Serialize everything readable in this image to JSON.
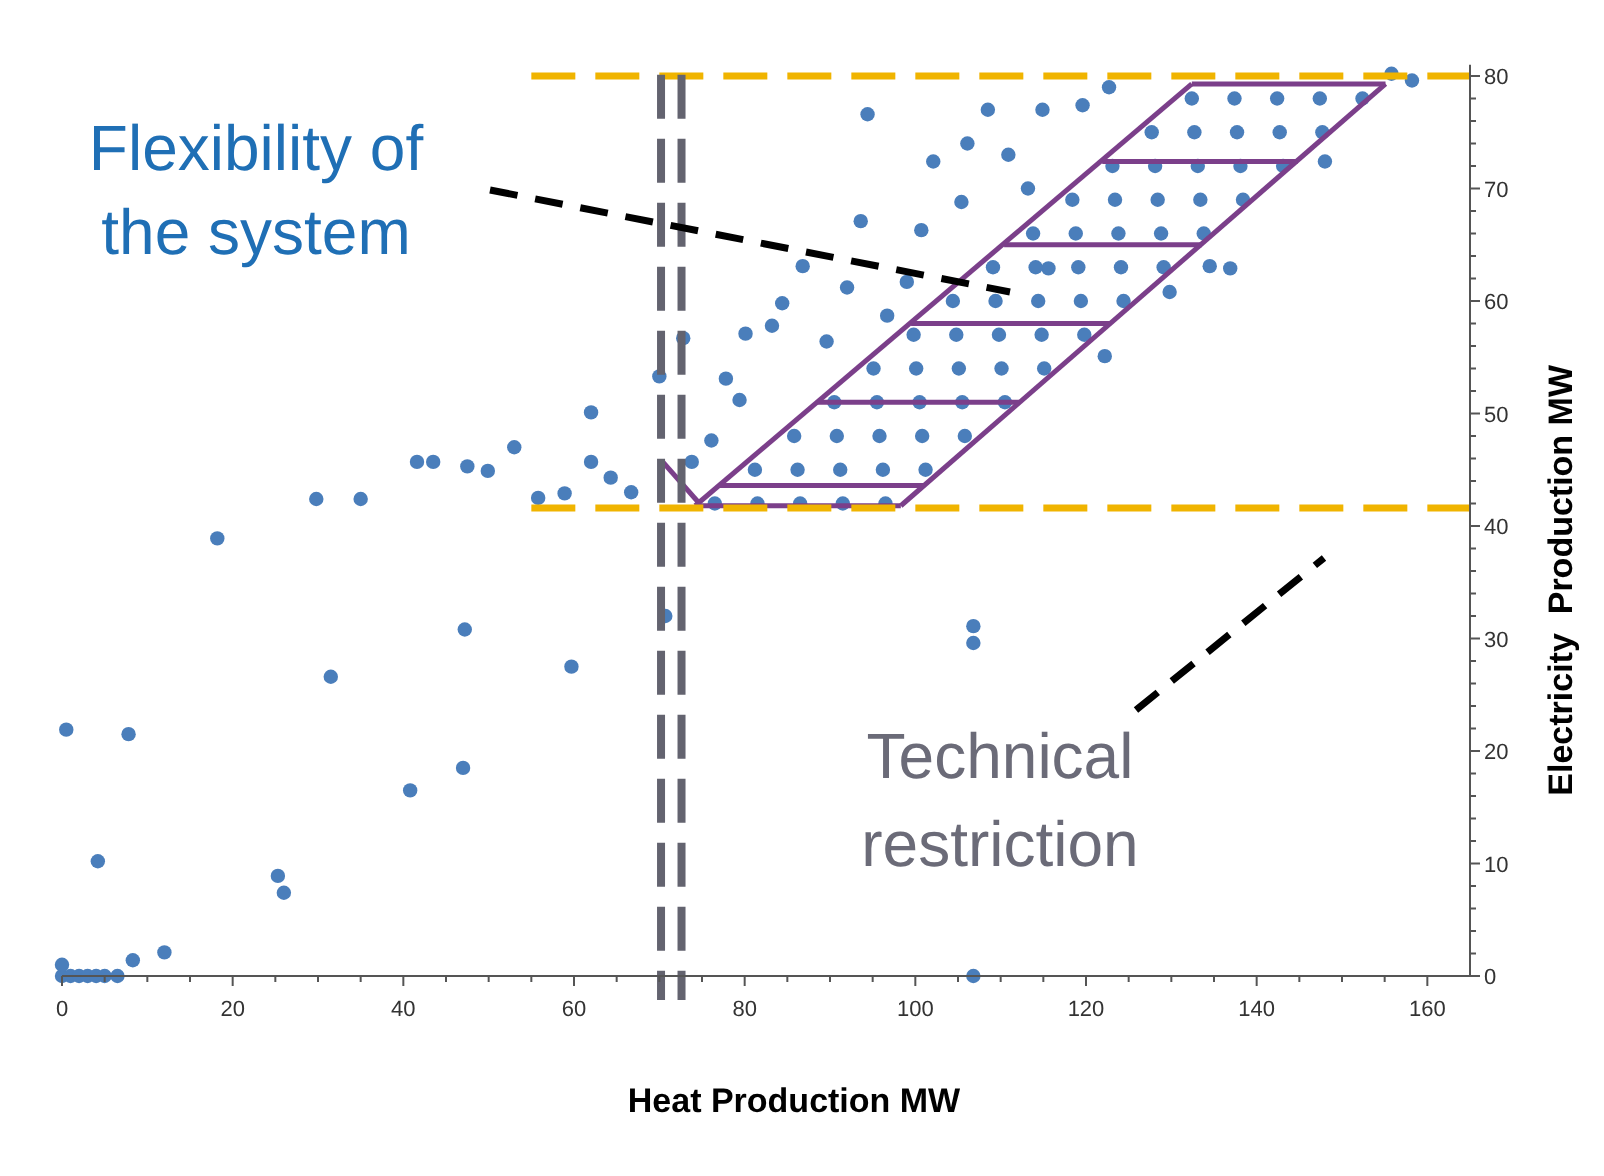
{
  "chart_data": {
    "type": "scatter",
    "xlabel": "Heat Production MW",
    "ylabel": "Electricity  Production MW",
    "xlim": [
      0,
      165
    ],
    "ylim": [
      0,
      81
    ],
    "xticks": [
      0,
      {
        "value": 5,
        "label": null
      },
      {
        "value": 10,
        "label": null
      },
      {
        "value": 15,
        "label": null
      },
      20,
      {
        "value": 25,
        "label": null
      },
      {
        "value": 30,
        "label": null
      },
      {
        "value": 35,
        "label": null
      },
      40,
      {
        "value": 45,
        "label": null
      },
      {
        "value": 50,
        "label": null
      },
      {
        "value": 55,
        "label": null
      },
      60,
      {
        "value": 65,
        "label": null
      },
      {
        "value": 70,
        "label": null
      },
      {
        "value": 75,
        "label": null
      },
      80,
      {
        "value": 85,
        "label": null
      },
      {
        "value": 90,
        "label": null
      },
      {
        "value": 95,
        "label": null
      },
      100,
      {
        "value": 105,
        "label": null
      },
      {
        "value": 110,
        "label": null
      },
      {
        "value": 115,
        "label": null
      },
      120,
      {
        "value": 125,
        "label": null
      },
      {
        "value": 130,
        "label": null
      },
      {
        "value": 135,
        "label": null
      },
      140,
      {
        "value": 145,
        "label": null
      },
      {
        "value": 150,
        "label": null
      },
      {
        "value": 155,
        "label": null
      },
      160
    ],
    "yticks": [
      0,
      {
        "value": 2,
        "label": null
      },
      {
        "value": 4,
        "label": null
      },
      {
        "value": 6,
        "label": null
      },
      {
        "value": 8,
        "label": null
      },
      10,
      {
        "value": 12,
        "label": null
      },
      {
        "value": 14,
        "label": null
      },
      {
        "value": 16,
        "label": null
      },
      {
        "value": 18,
        "label": null
      },
      20,
      {
        "value": 22,
        "label": null
      },
      {
        "value": 24,
        "label": null
      },
      {
        "value": 26,
        "label": null
      },
      {
        "value": 28,
        "label": null
      },
      30,
      {
        "value": 32,
        "label": null
      },
      {
        "value": 34,
        "label": null
      },
      {
        "value": 36,
        "label": null
      },
      {
        "value": 38,
        "label": null
      },
      40,
      {
        "value": 42,
        "label": null
      },
      {
        "value": 44,
        "label": null
      },
      {
        "value": 46,
        "label": null
      },
      {
        "value": 48,
        "label": null
      },
      50,
      {
        "value": 52,
        "label": null
      },
      {
        "value": 54,
        "label": null
      },
      {
        "value": 56,
        "label": null
      },
      {
        "value": 58,
        "label": null
      },
      60,
      {
        "value": 62,
        "label": null
      },
      {
        "value": 64,
        "label": null
      },
      {
        "value": 66,
        "label": null
      },
      {
        "value": 68,
        "label": null
      },
      70,
      {
        "value": 72,
        "label": null
      },
      {
        "value": 74,
        "label": null
      },
      {
        "value": 76,
        "label": null
      },
      {
        "value": 78,
        "label": null
      },
      80
    ],
    "grid": false,
    "annotations": [
      "Flexibility of the system",
      "Technical restriction"
    ],
    "ref_lines": [
      {
        "axis": "y",
        "value": 80,
        "color": "#f0b400",
        "line_style": "dashed"
      },
      {
        "axis": "y",
        "value": 41.6,
        "color": "#f0b400",
        "line_style": "dashed"
      },
      {
        "axis": "x",
        "value": 70.2,
        "color": "#63636f",
        "line_style": "dashed"
      },
      {
        "axis": "x",
        "value": 72.6,
        "color": "#63636f",
        "line_style": "dashed"
      }
    ],
    "series": [
      {
        "marker": "circle",
        "color": "#4a7ebb",
        "x": [
          0,
          1,
          2,
          3,
          4,
          5,
          6.5,
          0,
          0.5,
          7.8,
          4.2,
          8.3,
          12,
          25.3,
          26,
          31.5,
          40.8,
          47,
          47.2,
          59.7,
          70.7,
          106.8,
          106.8,
          106.8,
          62,
          41.6,
          43.5,
          47.5,
          49.9,
          53,
          29.8,
          35,
          18.2,
          55.8,
          58.9,
          62,
          64.3,
          66.7,
          70,
          72.8,
          77.8,
          79.4,
          80.1,
          83.2,
          84.4,
          86.8,
          76.1,
          73.8,
          94.4,
          93.6,
          100.7,
          106.1,
          108.5,
          114.9,
          122.7,
          119.6,
          102.1,
          110.9,
          105.4,
          92,
          96.7,
          89.6,
          122.2,
          134.5,
          136.9,
          129.8,
          148,
          158.2,
          155.8,
          115.6,
          113.2,
          99,
          76.5,
          81.5,
          86.5,
          91.5,
          96.5,
          81.2,
          86.2,
          91.2,
          96.2,
          101.2,
          85.8,
          90.8,
          95.8,
          100.8,
          105.8,
          90.5,
          95.5,
          100.5,
          105.5,
          110.5,
          95.1,
          100.1,
          105.1,
          110.1,
          115.1,
          99.8,
          104.8,
          109.8,
          114.8,
          119.8,
          104.4,
          109.4,
          114.4,
          119.4,
          124.4,
          109.1,
          114.1,
          119.1,
          124.1,
          129.1,
          113.8,
          118.8,
          123.8,
          128.8,
          133.8,
          118.4,
          123.4,
          128.4,
          133.4,
          138.4,
          123.1,
          128.1,
          133.1,
          138.1,
          143.1,
          127.7,
          132.7,
          137.7,
          142.7,
          147.7,
          132.4,
          137.4,
          142.4,
          147.4,
          152.4
        ],
        "values": [
          0,
          0,
          0,
          0,
          0,
          0,
          0,
          1,
          21.9,
          21.5,
          10.2,
          1.4,
          2.1,
          8.9,
          7.4,
          26.6,
          16.5,
          18.5,
          30.8,
          27.5,
          32,
          31.1,
          29.6,
          0,
          50.1,
          45.7,
          45.7,
          45.3,
          44.9,
          47,
          42.4,
          42.4,
          38.9,
          42.5,
          42.9,
          45.7,
          44.3,
          43,
          53.3,
          56.7,
          53.1,
          51.2,
          57.1,
          57.8,
          59.8,
          63.1,
          47.6,
          45.7,
          76.6,
          67.1,
          66.3,
          74,
          77,
          77,
          79,
          77.4,
          72.4,
          73,
          68.8,
          61.2,
          58.7,
          56.4,
          55.1,
          63.1,
          62.9,
          60.8,
          72.4,
          79.6,
          80.2,
          62.9,
          70,
          61.7,
          42,
          42,
          42,
          42,
          42,
          45,
          45,
          45,
          45,
          45,
          48,
          48,
          48,
          48,
          48,
          51,
          51,
          51,
          51,
          51,
          54,
          54,
          54,
          54,
          54,
          57,
          57,
          57,
          57,
          57,
          60,
          60,
          60,
          60,
          60,
          63,
          63,
          63,
          63,
          63,
          66,
          66,
          66,
          66,
          66,
          69,
          69,
          69,
          69,
          69,
          72,
          72,
          72,
          72,
          72,
          75,
          75,
          75,
          75,
          75,
          78,
          78,
          78,
          78,
          78
        ]
      },
      {
        "type": "line",
        "marker": "none",
        "color": "#7b3f8a",
        "x": [
          74.2,
          98.3
        ],
        "values": [
          41.8,
          41.8
        ]
      },
      {
        "type": "line",
        "marker": "none",
        "color": "#7b3f8a",
        "x": [
          98.3,
          155.1
        ],
        "values": [
          41.8,
          79.3
        ]
      },
      {
        "type": "line",
        "marker": "none",
        "color": "#7b3f8a",
        "x": [
          132.4,
          155.1
        ],
        "values": [
          79.3,
          79.3
        ]
      },
      {
        "type": "line",
        "marker": "none",
        "color": "#7b3f8a",
        "x": [
          74.2,
          132.4
        ],
        "values": [
          41.8,
          79.3
        ]
      },
      {
        "type": "line",
        "marker": "none",
        "color": "#7b3f8a",
        "x": [
          70.4,
          74.7
        ],
        "values": [
          45.7,
          42
        ]
      },
      {
        "type": "line",
        "marker": "none",
        "color": "#7b3f8a",
        "x": [
          77,
          101
        ],
        "values": [
          43.6,
          43.6
        ]
      },
      {
        "type": "line",
        "marker": "none",
        "color": "#7b3f8a",
        "x": [
          88.5,
          112.2
        ],
        "values": [
          51,
          51
        ]
      },
      {
        "type": "line",
        "marker": "none",
        "color": "#7b3f8a",
        "x": [
          99.5,
          122.9
        ],
        "values": [
          58,
          58
        ]
      },
      {
        "type": "line",
        "marker": "none",
        "color": "#7b3f8a",
        "x": [
          110.4,
          133.6
        ],
        "values": [
          65,
          65
        ]
      },
      {
        "type": "line",
        "marker": "none",
        "color": "#7b3f8a",
        "x": [
          121.9,
          144.8
        ],
        "values": [
          72.4,
          72.4
        ]
      }
    ]
  }
}
